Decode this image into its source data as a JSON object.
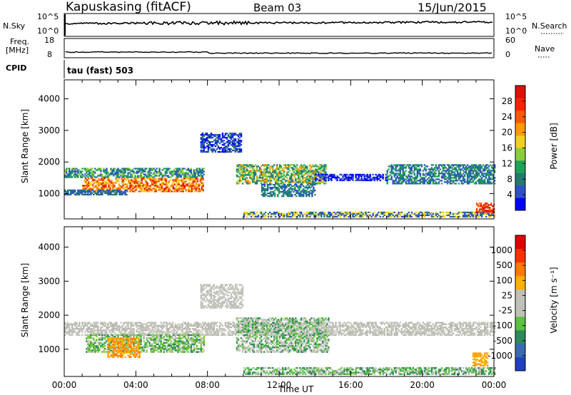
{
  "header": {
    "station": "Kapuskasing (fitACF)",
    "beam": "Beam 03",
    "date": "15/Jun/2015"
  },
  "strip_labels": {
    "nsky": "N.Sky",
    "nsky_ticks": [
      "10^5",
      "10^0"
    ],
    "nsearch": "N.Search",
    "nsearch_ticks": [
      "10^5",
      "10^0"
    ],
    "freq_line1": "Freq.",
    "freq_line2": "[MHz]",
    "freq_ticks": [
      "18",
      "8"
    ],
    "nave": "Nave",
    "nave_ticks": [
      "60",
      "0"
    ],
    "cpid": "CPID",
    "cpid_value": "tau (fast) 503"
  },
  "chart_data": [
    {
      "type": "heatmap",
      "name": "power",
      "ylabel": "Slant Range [km]",
      "y_ticks": [
        "4000",
        "3000",
        "2000",
        "1000"
      ],
      "y_tick_values": [
        4000,
        3000,
        2000,
        1000
      ],
      "ylim": [
        200,
        4600
      ],
      "xlim": [
        0,
        24
      ],
      "colorbar_label": "Power [dB]",
      "colorbar_ticks": [
        "28",
        "24",
        "20",
        "16",
        "12",
        "8",
        "4"
      ],
      "colorbar_colors": [
        "#0000ff",
        "#3050c8",
        "#227a70",
        "#1fa35a",
        "#8ccc3c",
        "#f0d020",
        "#ff9a00",
        "#ff5a00",
        "#ff2200",
        "#e01000"
      ],
      "bands": [
        {
          "t0": 0.0,
          "t1": 7.8,
          "r0": 1500,
          "r1": 1800,
          "colors": [
            "#227a70",
            "#1fa35a",
            "#8ccc3c",
            "#3050c8"
          ]
        },
        {
          "t0": 1.0,
          "t1": 7.8,
          "r0": 1050,
          "r1": 1500,
          "colors": [
            "#ff5a00",
            "#ff9a00",
            "#e01000",
            "#f0d020"
          ]
        },
        {
          "t0": 0.0,
          "t1": 3.5,
          "r0": 950,
          "r1": 1100,
          "colors": [
            "#3050c8",
            "#227a70"
          ]
        },
        {
          "t0": 7.6,
          "t1": 9.9,
          "r0": 2300,
          "r1": 2900,
          "colors": [
            "#3050c8",
            "#0000ff",
            "#227a70"
          ]
        },
        {
          "t0": 9.6,
          "t1": 14.6,
          "r0": 1300,
          "r1": 1900,
          "colors": [
            "#227a70",
            "#1fa35a",
            "#8ccc3c",
            "#ff9a00"
          ]
        },
        {
          "t0": 11.0,
          "t1": 14.0,
          "r0": 900,
          "r1": 1300,
          "colors": [
            "#3050c8",
            "#227a70",
            "#1fa35a"
          ]
        },
        {
          "t0": 14.0,
          "t1": 18.0,
          "r0": 1400,
          "r1": 1600,
          "colors": [
            "#3050c8",
            "#0000ff"
          ]
        },
        {
          "t0": 18.0,
          "t1": 24.0,
          "r0": 1300,
          "r1": 1900,
          "colors": [
            "#3050c8",
            "#227a70",
            "#1fa35a"
          ]
        },
        {
          "t0": 10.0,
          "t1": 24.0,
          "r0": 250,
          "r1": 400,
          "colors": [
            "#3050c8",
            "#227a70",
            "#f0d020"
          ]
        },
        {
          "t0": 23.0,
          "t1": 24.0,
          "r0": 400,
          "r1": 700,
          "colors": [
            "#ff5a00",
            "#e01000"
          ]
        }
      ]
    },
    {
      "type": "heatmap",
      "name": "velocity",
      "ylabel": "Slant Range [km]",
      "xlabel": "Time UT",
      "x_ticks": [
        "00:00",
        "04:00",
        "08:00",
        "12:00",
        "16:00",
        "20:00",
        "00:00"
      ],
      "x_tick_values": [
        0,
        4,
        8,
        12,
        16,
        20,
        24
      ],
      "y_ticks": [
        "4000",
        "3000",
        "2000",
        "1000"
      ],
      "y_tick_values": [
        4000,
        3000,
        2000,
        1000
      ],
      "ylim": [
        200,
        4600
      ],
      "xlim": [
        0,
        24
      ],
      "colorbar_label": "Velocity [m s⁻¹]",
      "colorbar_ticks": [
        "1000",
        "500",
        "100",
        "25",
        "-25",
        "-100",
        "-500",
        "-1000"
      ],
      "colorbar_colors": [
        "#2040c0",
        "#3a6ab0",
        "#2e8a5a",
        "#5cc040",
        "#c0c0b8",
        "#c0c0b8",
        "#ffb000",
        "#ff7a00",
        "#ff3000",
        "#e00000"
      ],
      "bands": [
        {
          "t0": 0.0,
          "t1": 24.0,
          "r0": 1400,
          "r1": 1800,
          "colors": [
            "#c0c0b8",
            "#c8c8c0",
            "#b8b8b0"
          ]
        },
        {
          "t0": 1.2,
          "t1": 7.8,
          "r0": 900,
          "r1": 1400,
          "colors": [
            "#5cc040",
            "#2e8a5a",
            "#c0c0b8",
            "#8ccc3c"
          ]
        },
        {
          "t0": 2.4,
          "t1": 4.2,
          "r0": 750,
          "r1": 1300,
          "colors": [
            "#ff9a00",
            "#ffb000",
            "#ff7a00"
          ]
        },
        {
          "t0": 7.6,
          "t1": 10.0,
          "r0": 2200,
          "r1": 2900,
          "colors": [
            "#c0c0b8",
            "#c8c8c0"
          ]
        },
        {
          "t0": 9.6,
          "t1": 14.8,
          "r0": 900,
          "r1": 1900,
          "colors": [
            "#c0c0b8",
            "#2e8a5a",
            "#5cc040",
            "#c8c8c0"
          ]
        },
        {
          "t0": 10.0,
          "t1": 24.0,
          "r0": 250,
          "r1": 450,
          "colors": [
            "#c0c0b8",
            "#2e8a5a",
            "#5cc040"
          ]
        },
        {
          "t0": 22.8,
          "t1": 23.6,
          "r0": 500,
          "r1": 900,
          "colors": [
            "#ffb000",
            "#ff9a00"
          ]
        }
      ]
    }
  ]
}
